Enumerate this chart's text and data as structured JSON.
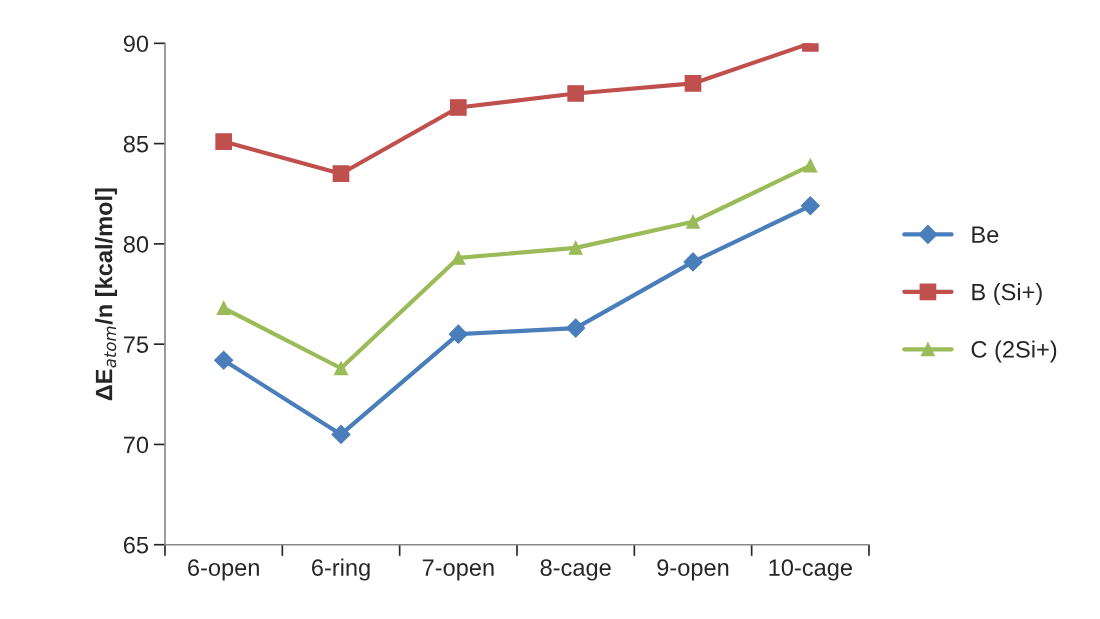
{
  "chart_data": {
    "type": "line",
    "ylabel": "ΔE$_{atom}$/n [kcal/mol]",
    "categories": [
      "6-open",
      "6-ring",
      "7-open",
      "8-cage",
      "9-open",
      "10-cage"
    ],
    "series": [
      {
        "name": "Be",
        "color": "#4a7ebb",
        "marker": "diamond",
        "values": [
          74.2,
          70.5,
          75.5,
          75.8,
          79.1,
          81.9
        ]
      },
      {
        "name": "B (Si+)",
        "color": "#c0504d",
        "marker": "square",
        "values": [
          85.1,
          83.5,
          86.8,
          87.5,
          88.0,
          90.0
        ]
      },
      {
        "name": "C (2Si+)",
        "color": "#9bbb59",
        "marker": "triangle",
        "values": [
          76.8,
          73.8,
          79.3,
          79.8,
          81.1,
          83.9
        ]
      }
    ],
    "ylim": [
      65,
      90
    ],
    "yticks": [
      65,
      70,
      75,
      80,
      85,
      90
    ],
    "grid": false,
    "legend": "right"
  }
}
